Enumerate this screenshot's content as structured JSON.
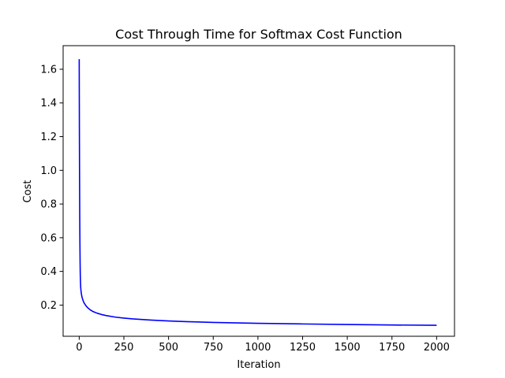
{
  "chart_data": {
    "type": "line",
    "title": "Cost Through Time for Softmax Cost Function",
    "xlabel": "Iteration",
    "ylabel": "Cost",
    "xlim": [
      -90,
      2100
    ],
    "ylim": [
      0.015,
      1.74
    ],
    "xticks": [
      0,
      250,
      500,
      750,
      1000,
      1250,
      1500,
      1750,
      2000
    ],
    "xtick_labels": [
      "0",
      "250",
      "500",
      "750",
      "1000",
      "1250",
      "1500",
      "1750",
      "2000"
    ],
    "yticks": [
      0.2,
      0.4,
      0.6,
      0.8,
      1.0,
      1.2,
      1.4,
      1.6
    ],
    "ytick_labels": [
      "0.2",
      "0.4",
      "0.6",
      "0.8",
      "1.0",
      "1.2",
      "1.4",
      "1.6"
    ],
    "grid": false,
    "legend": "none",
    "series": [
      {
        "color": "#0000ff",
        "x": [
          0,
          1,
          2,
          3,
          4,
          5,
          6,
          7,
          8,
          10,
          12,
          15,
          20,
          25,
          30,
          40,
          50,
          60,
          75,
          100,
          125,
          150,
          200,
          250,
          300,
          400,
          500,
          600,
          750,
          1000,
          1250,
          1500,
          1750,
          2000
        ],
        "y": [
          1.66,
          1.25,
          0.95,
          0.72,
          0.56,
          0.45,
          0.38,
          0.34,
          0.31,
          0.285,
          0.268,
          0.25,
          0.232,
          0.218,
          0.208,
          0.193,
          0.182,
          0.173,
          0.163,
          0.152,
          0.144,
          0.138,
          0.129,
          0.123,
          0.118,
          0.111,
          0.106,
          0.102,
          0.097,
          0.092,
          0.088,
          0.085,
          0.082,
          0.08
        ]
      }
    ]
  }
}
